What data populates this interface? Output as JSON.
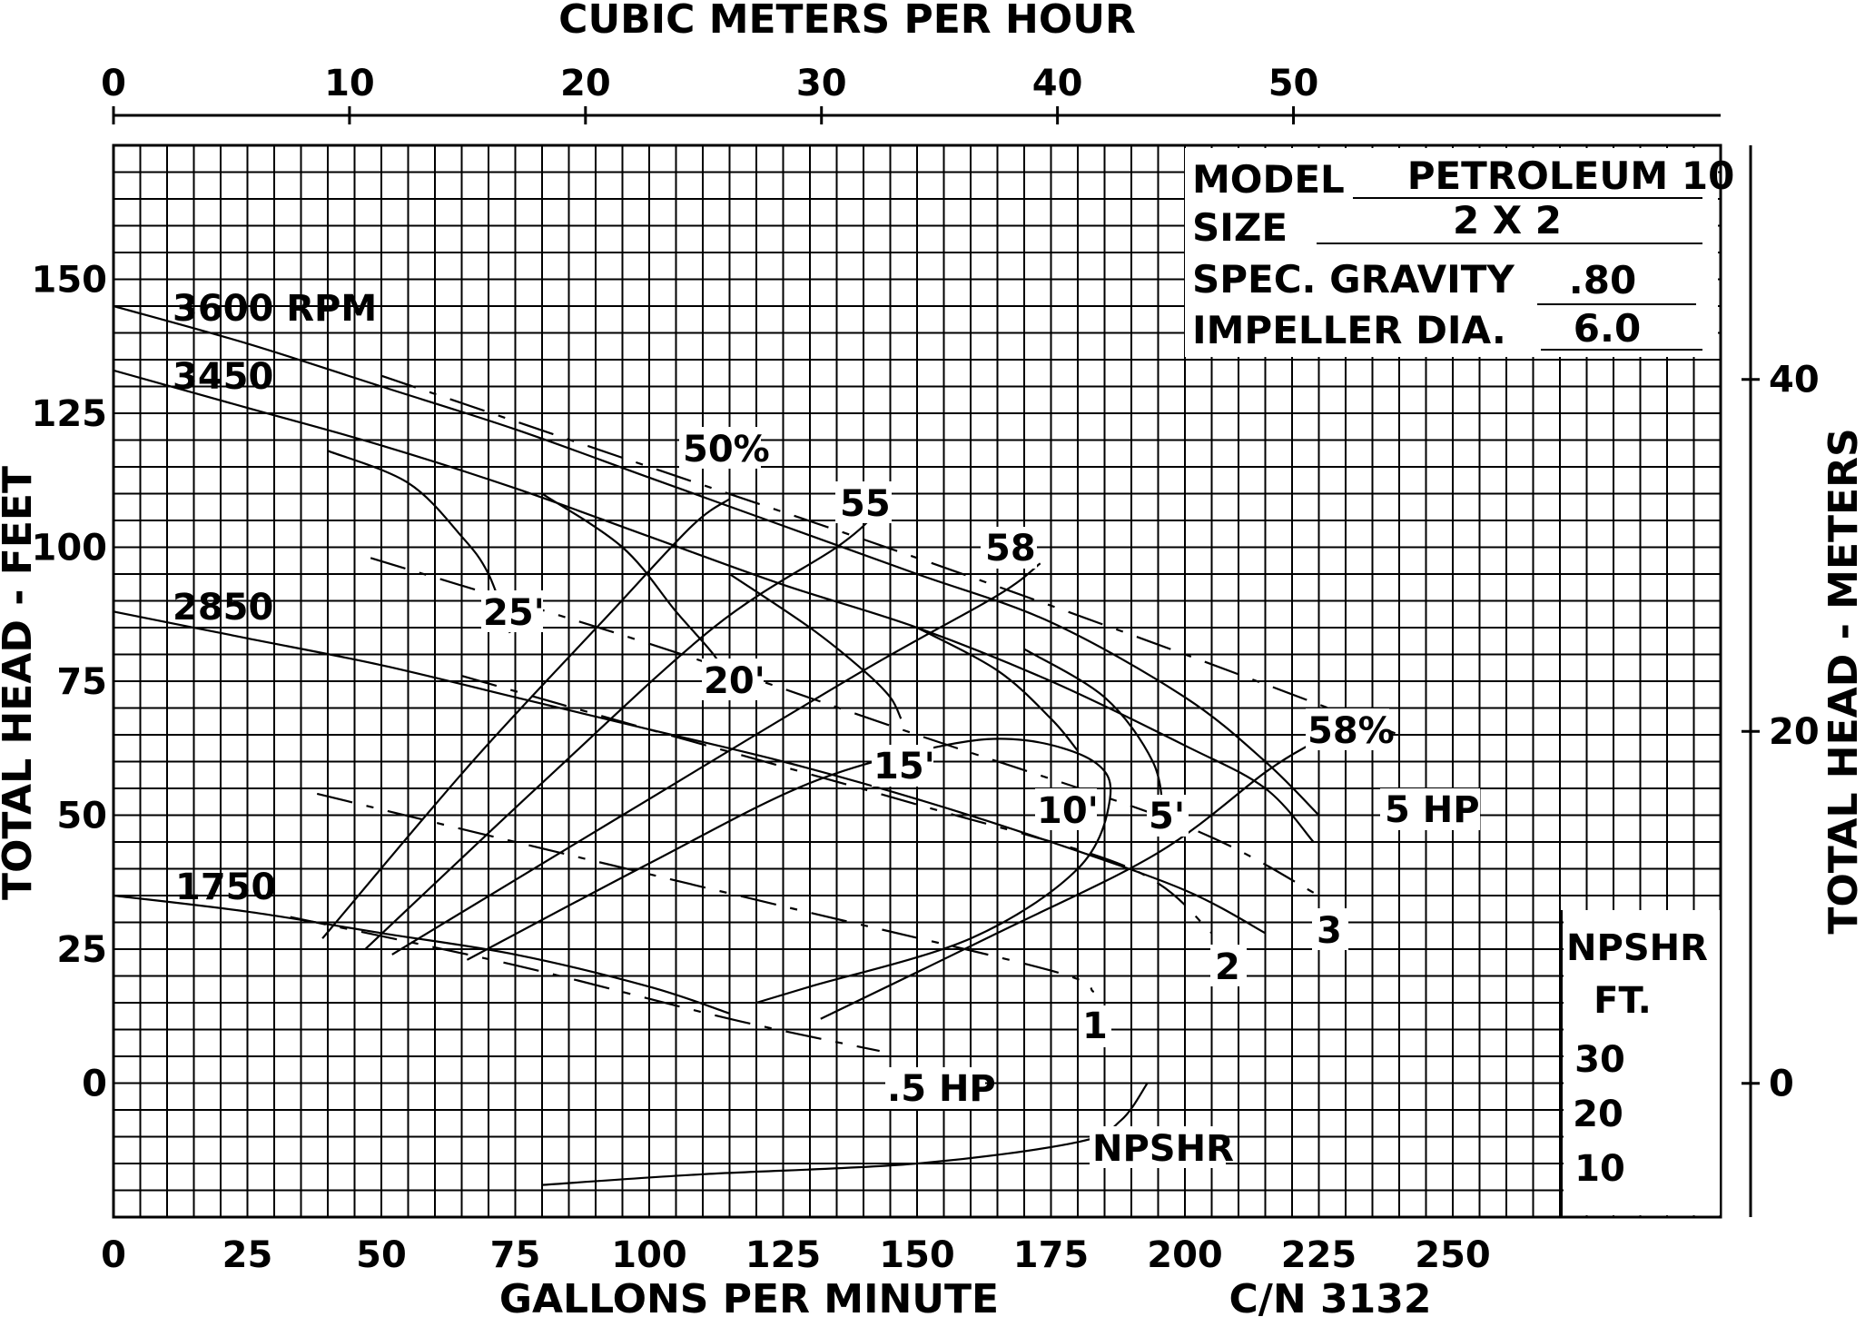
{
  "chart_data": {
    "type": "line",
    "title": "",
    "xlabel": "GALLONS PER MINUTE",
    "x2label": "CUBIC METERS PER HOUR",
    "ylabel": "TOTAL HEAD - FEET",
    "y2label": "TOTAL HEAD - METERS",
    "xlim": [
      0,
      300
    ],
    "ylim": [
      -25,
      175
    ],
    "x2lim": [
      0,
      68.1
    ],
    "y2lim": [
      -7.6,
      53.3
    ],
    "grid": true,
    "x_ticks": [
      "0",
      "25",
      "50",
      "75",
      "100",
      "125",
      "150",
      "175",
      "200",
      "225",
      "250"
    ],
    "y_ticks": [
      "0",
      "25",
      "50",
      "75",
      "100",
      "125",
      "150"
    ],
    "x2_ticks": [
      "0",
      "10",
      "20",
      "30",
      "40",
      "50"
    ],
    "y2_ticks": [
      "0",
      "20",
      "40"
    ],
    "catalog_no": "C/N 3132",
    "spec_box": [
      {
        "key": "MODEL",
        "value": "PETROLEUM 10"
      },
      {
        "key": "SIZE",
        "value": "2 X 2"
      },
      {
        "key": "SPEC. GRAVITY",
        "value": ".80"
      },
      {
        "key": "IMPELLER DIA.",
        "value": "6.0"
      }
    ],
    "npshr_scale": {
      "title": "NPSHR",
      "unit": "FT.",
      "ticks": [
        "30",
        "20",
        "10"
      ]
    },
    "series": [
      {
        "name": "3600 RPM",
        "kind": "head",
        "points": [
          [
            0,
            145
          ],
          [
            25,
            138
          ],
          [
            50,
            130
          ],
          [
            75,
            122
          ],
          [
            100,
            113
          ],
          [
            125,
            104
          ],
          [
            150,
            95
          ],
          [
            175,
            86
          ],
          [
            200,
            72
          ],
          [
            215,
            60
          ],
          [
            225,
            50
          ]
        ]
      },
      {
        "name": "3450",
        "kind": "head",
        "points": [
          [
            0,
            133
          ],
          [
            25,
            126
          ],
          [
            50,
            119
          ],
          [
            75,
            111
          ],
          [
            100,
            102
          ],
          [
            125,
            93
          ],
          [
            150,
            85
          ],
          [
            175,
            75
          ],
          [
            200,
            63
          ],
          [
            215,
            55
          ],
          [
            224,
            45
          ]
        ]
      },
      {
        "name": "2850",
        "kind": "head",
        "points": [
          [
            0,
            88
          ],
          [
            25,
            83
          ],
          [
            50,
            78
          ],
          [
            75,
            72
          ],
          [
            100,
            66
          ],
          [
            125,
            60
          ],
          [
            150,
            53
          ],
          [
            175,
            45
          ],
          [
            200,
            36
          ],
          [
            215,
            28
          ]
        ]
      },
      {
        "name": "1750",
        "kind": "head",
        "points": [
          [
            0,
            35
          ],
          [
            25,
            32
          ],
          [
            50,
            28
          ],
          [
            75,
            24
          ],
          [
            100,
            18
          ],
          [
            115,
            13
          ]
        ]
      },
      {
        "name": "50%",
        "kind": "efficiency",
        "points": [
          [
            39,
            27
          ],
          [
            67,
            60
          ],
          [
            93,
            88
          ],
          [
            108,
            104
          ],
          [
            115,
            109
          ]
        ]
      },
      {
        "name": "55",
        "kind": "efficiency",
        "points": [
          [
            47,
            25
          ],
          [
            80,
            56
          ],
          [
            112,
            85
          ],
          [
            135,
            100
          ],
          [
            142,
            106
          ]
        ]
      },
      {
        "name": "58",
        "kind": "efficiency",
        "points": [
          [
            52,
            24
          ],
          [
            95,
            50
          ],
          [
            140,
            77
          ],
          [
            165,
            91
          ],
          [
            173,
            97
          ]
        ]
      },
      {
        "name": "58%",
        "kind": "efficiency",
        "points": [
          [
            66,
            23
          ],
          [
            100,
            41
          ],
          [
            130,
            56
          ],
          [
            155,
            63
          ],
          [
            170,
            64
          ],
          [
            183,
            60
          ],
          [
            186,
            53
          ],
          [
            180,
            40
          ],
          [
            160,
            27
          ],
          [
            130,
            18
          ],
          [
            120,
            15
          ]
        ]
      },
      {
        "name": "58%",
        "kind": "efficiency",
        "points": [
          [
            132,
            12
          ],
          [
            165,
            28
          ],
          [
            195,
            43
          ],
          [
            215,
            58
          ],
          [
            223,
            63
          ]
        ]
      },
      {
        "name": "25'",
        "kind": "npsha",
        "points": [
          [
            40,
            118
          ],
          [
            55,
            112
          ],
          [
            65,
            102
          ],
          [
            70,
            95
          ],
          [
            74,
            84
          ]
        ]
      },
      {
        "name": "20'",
        "kind": "npsha",
        "points": [
          [
            80,
            110
          ],
          [
            95,
            100
          ],
          [
            105,
            88
          ],
          [
            112,
            80
          ],
          [
            115,
            75
          ]
        ]
      },
      {
        "name": "15'",
        "kind": "npsha",
        "points": [
          [
            115,
            95
          ],
          [
            130,
            85
          ],
          [
            140,
            77
          ],
          [
            145,
            72
          ],
          [
            147,
            68
          ]
        ]
      },
      {
        "name": "10'",
        "kind": "npsha",
        "points": [
          [
            150,
            85
          ],
          [
            165,
            77
          ],
          [
            175,
            68
          ],
          [
            180,
            62
          ]
        ]
      },
      {
        "name": "5'",
        "kind": "npsha",
        "points": [
          [
            170,
            81
          ],
          [
            185,
            72
          ],
          [
            194,
            60
          ],
          [
            196,
            50
          ]
        ]
      },
      {
        "name": "5 HP",
        "kind": "power",
        "points": [
          [
            50,
            132
          ],
          [
            100,
            115
          ],
          [
            150,
            98
          ],
          [
            200,
            80
          ],
          [
            240,
            65
          ]
        ]
      },
      {
        "name": "3",
        "kind": "power",
        "points": [
          [
            48,
            98
          ],
          [
            100,
            82
          ],
          [
            150,
            65
          ],
          [
            200,
            48
          ],
          [
            225,
            35
          ]
        ]
      },
      {
        "name": "2",
        "kind": "power",
        "points": [
          [
            65,
            76
          ],
          [
            100,
            66
          ],
          [
            150,
            52
          ],
          [
            190,
            40
          ],
          [
            205,
            28
          ]
        ]
      },
      {
        "name": "1",
        "kind": "power",
        "points": [
          [
            38,
            54
          ],
          [
            75,
            45
          ],
          [
            125,
            33
          ],
          [
            175,
            21
          ],
          [
            183,
            17
          ]
        ]
      },
      {
        "name": ".5 HP",
        "kind": "power",
        "points": [
          [
            33,
            31
          ],
          [
            75,
            22
          ],
          [
            115,
            12
          ],
          [
            143,
            6
          ]
        ]
      },
      {
        "name": "NPSHR",
        "kind": "npshr",
        "points": [
          [
            80,
            -19
          ],
          [
            110,
            -17
          ],
          [
            150,
            -15
          ],
          [
            180,
            -11
          ],
          [
            188,
            -7
          ],
          [
            193,
            0
          ]
        ]
      }
    ]
  }
}
